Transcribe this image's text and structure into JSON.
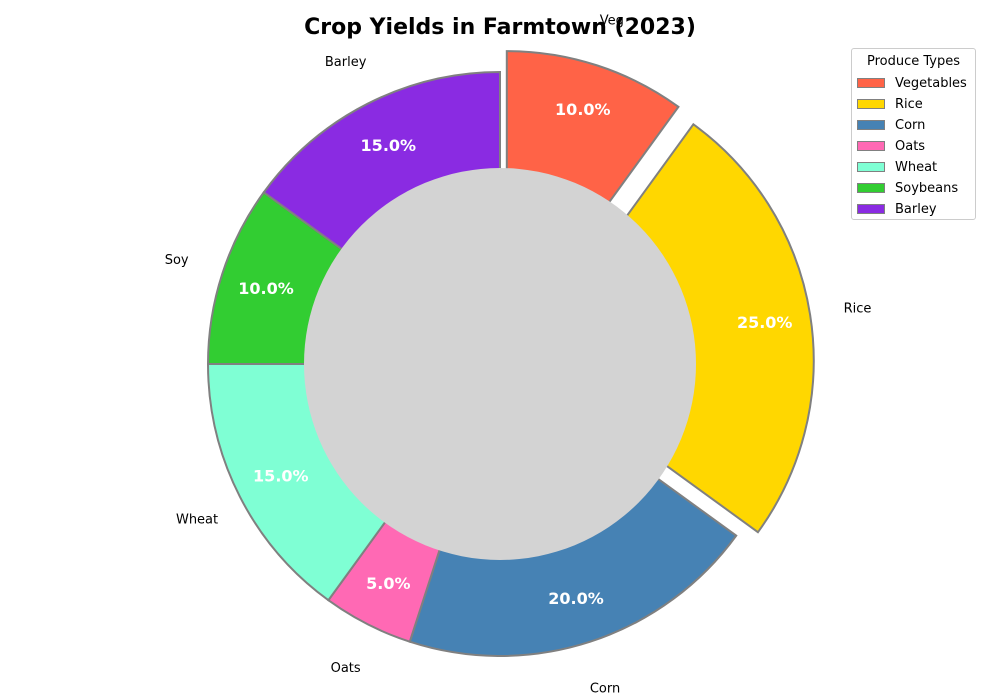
{
  "chart_data": {
    "type": "pie",
    "title": "Crop Yields in Farmtown (2023)",
    "donut": true,
    "start_angle_deg": 90,
    "direction": "clockwise",
    "slices": [
      {
        "label": "Veg",
        "legend": "Vegetables",
        "value": 10.0,
        "pct_label": "10.0%",
        "color": "#FF6347",
        "exploded": true
      },
      {
        "label": "Rice",
        "legend": "Rice",
        "value": 25.0,
        "pct_label": "25.0%",
        "color": "#FFD700",
        "exploded": true
      },
      {
        "label": "Corn",
        "legend": "Corn",
        "value": 20.0,
        "pct_label": "20.0%",
        "color": "#4682B4",
        "exploded": false
      },
      {
        "label": "Oats",
        "legend": "Oats",
        "value": 5.0,
        "pct_label": "5.0%",
        "color": "#FF69B4",
        "exploded": false
      },
      {
        "label": "Wheat",
        "legend": "Wheat",
        "value": 15.0,
        "pct_label": "15.0%",
        "color": "#7FFFD4",
        "exploded": false
      },
      {
        "label": "Soy",
        "legend": "Soybeans",
        "value": 10.0,
        "pct_label": "10.0%",
        "color": "#32CD32",
        "exploded": false
      },
      {
        "label": "Barley",
        "legend": "Barley",
        "value": 15.0,
        "pct_label": "15.0%",
        "color": "#8A2BE2",
        "exploded": false
      }
    ],
    "center_color": "#D3D3D3",
    "edge_color": "#808080",
    "legend": {
      "title": "Produce Types",
      "placement": "top-right"
    }
  }
}
